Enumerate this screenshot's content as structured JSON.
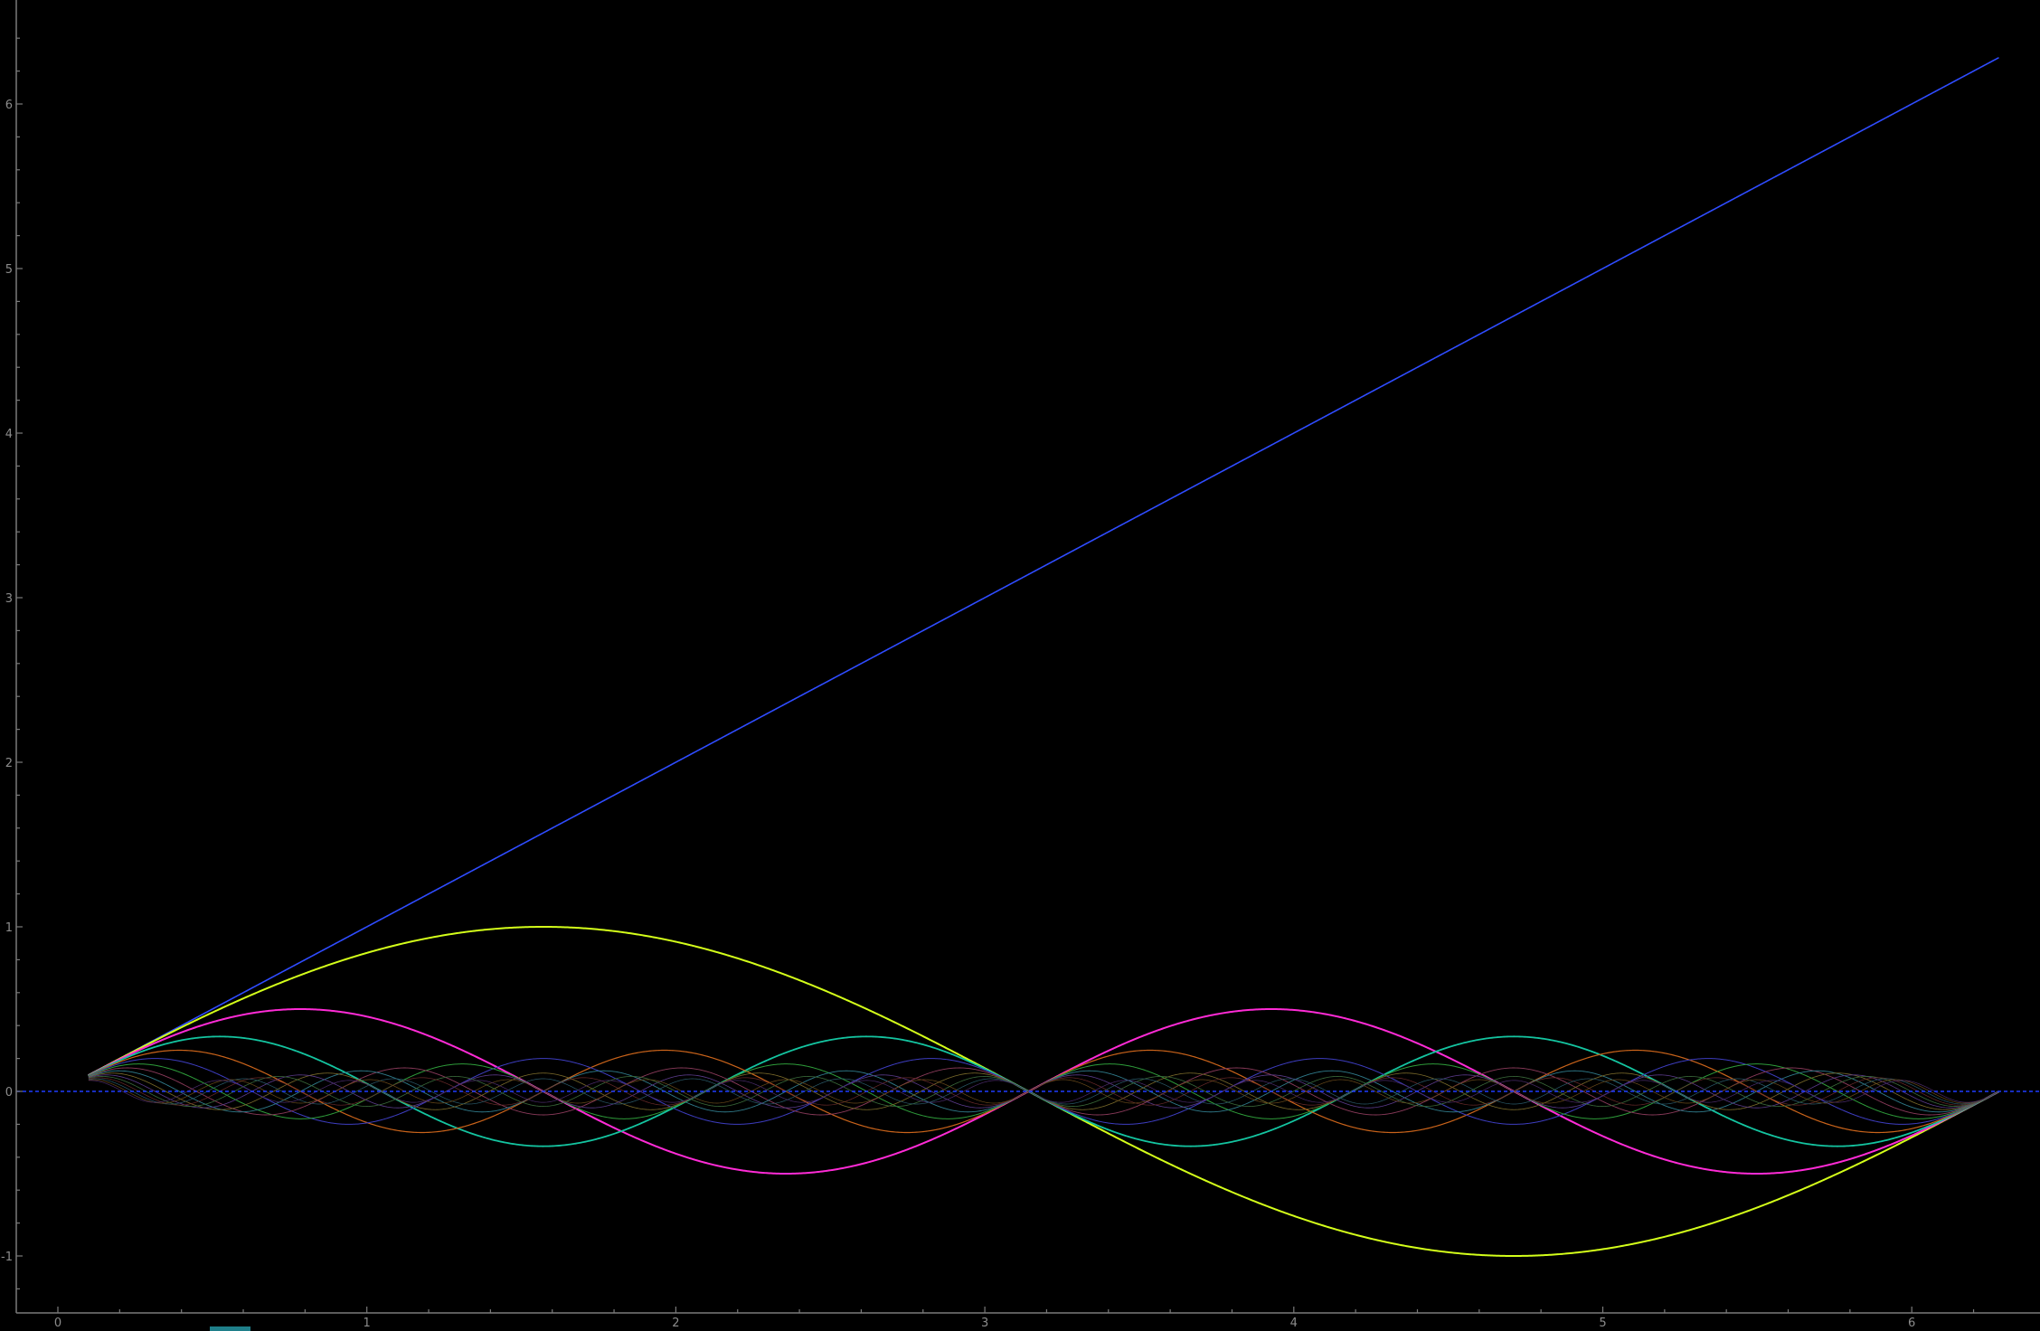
{
  "chart_data": {
    "type": "line",
    "title": "",
    "xlabel": "",
    "ylabel": "",
    "xlim": [
      -0.13,
      6.45
    ],
    "ylim": [
      -1.33,
      6.6
    ],
    "x_ticks": [
      "0",
      "1",
      "2",
      "3",
      "4",
      "5",
      "6"
    ],
    "y_ticks": [
      "-1",
      "0",
      "1",
      "2",
      "3",
      "4",
      "5",
      "6"
    ],
    "grid": false,
    "legend": "none",
    "background": "#000000",
    "x_start": 0.1,
    "x_end": 6.28,
    "zero_line": {
      "y": 0,
      "color": "#1f3cff",
      "style": "dashed"
    },
    "series": [
      {
        "formula": "x",
        "color": "#2f4cff",
        "width": 1.6
      },
      {
        "formula": "sin(1x)/1",
        "color": "#d4ff1a",
        "width": 2
      },
      {
        "formula": "sin(2x)/2",
        "color": "#ff2bd6",
        "width": 2
      },
      {
        "formula": "sin(3x)/3",
        "color": "#14c4a0",
        "width": 1.8
      },
      {
        "formula": "sin(4x)/4",
        "color": "#c9631a",
        "width": 1.2
      },
      {
        "formula": "sin(5x)/5",
        "color": "#3d3dbf",
        "width": 1.0
      },
      {
        "formula": "sin(6x)/6",
        "color": "#2e9c3a",
        "width": 1.0
      },
      {
        "formula": "sin(7x)/7",
        "color": "#8a3a5a",
        "width": 0.9
      },
      {
        "formula": "sin(8x)/8",
        "color": "#2f7a8a",
        "width": 0.9
      },
      {
        "formula": "sin(9x)/9",
        "color": "#7a6a2a",
        "width": 0.8
      },
      {
        "formula": "sin(10x)/10",
        "color": "#5a3a8a",
        "width": 0.8
      },
      {
        "formula": "sin(11x)/11",
        "color": "#3a6a3a",
        "width": 0.8
      },
      {
        "formula": "sin(12x)/12",
        "color": "#6a2a2a",
        "width": 0.7
      },
      {
        "formula": "sin(13x)/13",
        "color": "#2a5a6a",
        "width": 0.7
      },
      {
        "formula": "sin(14x)/14",
        "color": "#6a4a1a",
        "width": 0.7
      },
      {
        "formula": "sin(15x)/15",
        "color": "#4a2a6a",
        "width": 0.7
      }
    ]
  }
}
